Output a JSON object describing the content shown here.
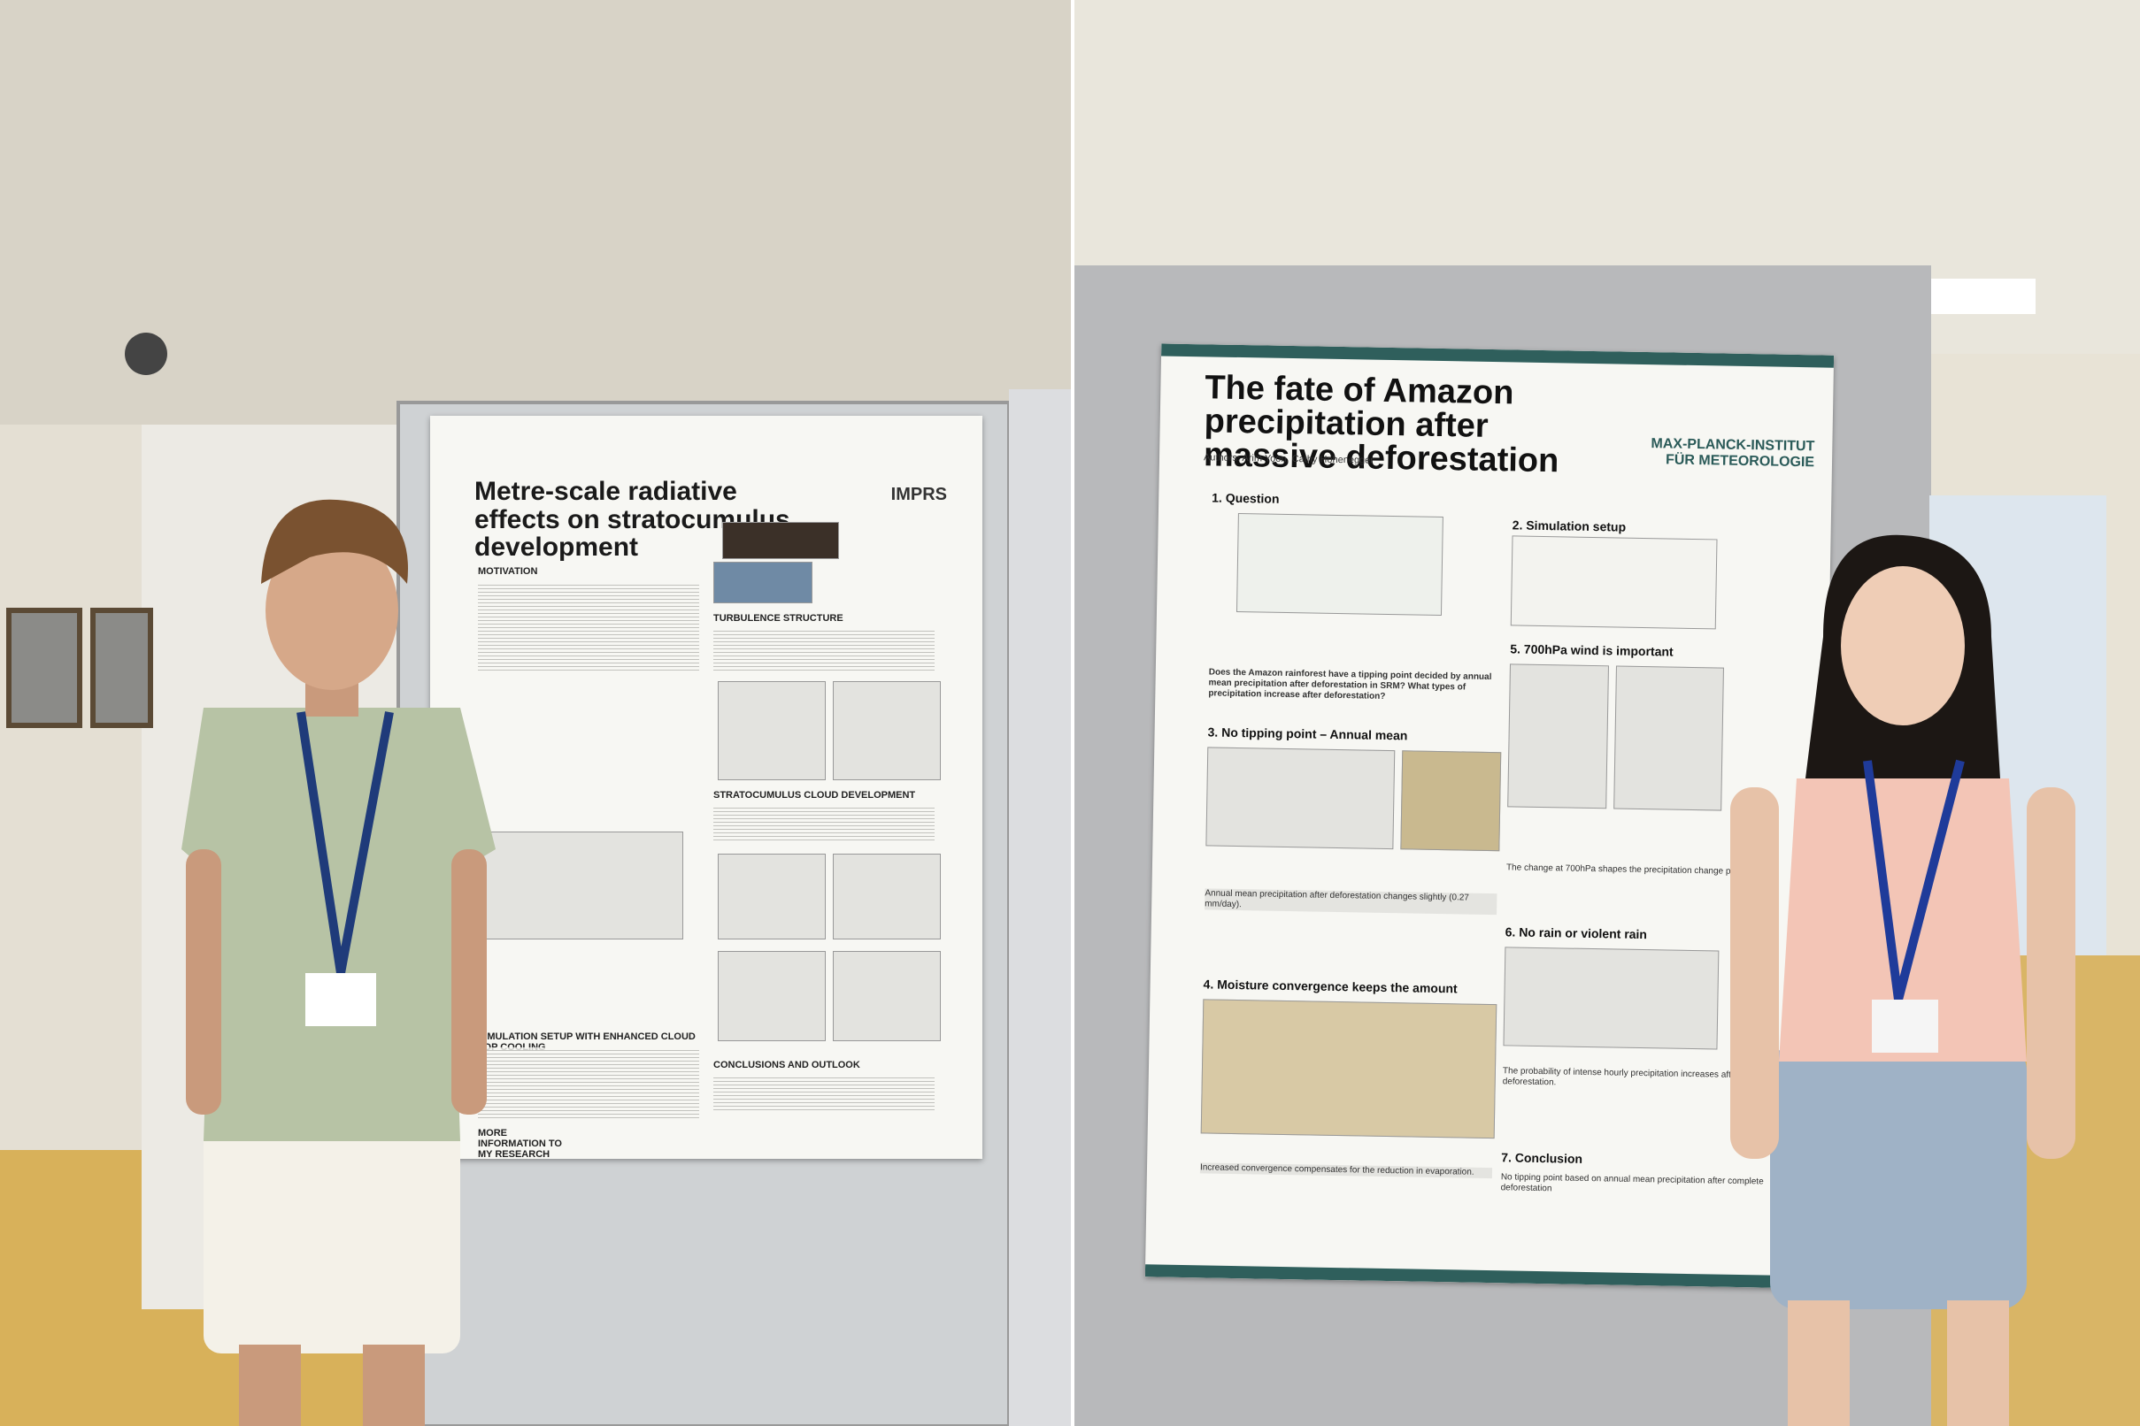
{
  "left_poster": {
    "title": "Metre-scale radiative effects on stratocumulus development",
    "institute": "IMPRS",
    "sections": [
      "MOTIVATION",
      "TURBULENCE STRUCTURE",
      "STRATOCUMULUS CLOUD DEVELOPMENT",
      "SIMULATION SETUP WITH ENHANCED CLOUD TOP COOLING",
      "CONCLUSIONS AND OUTLOOK"
    ],
    "footer": "MORE INFORMATION TO MY RESEARCH"
  },
  "right_poster": {
    "title": "The fate of Amazon precipitation after massive deforestation",
    "authors": "Authors: Arim Yoon, Cathy Hohenegger",
    "institute": "MAX-PLANCK-INSTITUT FÜR METEOROLOGIE",
    "sections": [
      {
        "heading": "1. Question",
        "text": "Does the Amazon rainforest have a tipping point decided by annual mean precipitation after deforestation in SRM? What types of precipitation increase after deforestation?"
      },
      {
        "heading": "3. No tipping point – Annual mean",
        "text": "Annual mean precipitation after deforestation changes slightly (0.27 mm/day)."
      },
      {
        "heading": "4. Moisture convergence keeps the amount",
        "text": "Increased convergence compensates for the reduction in evaporation."
      },
      {
        "heading": "2. Simulation setup",
        "text": ""
      },
      {
        "heading": "5. 700hPa wind is important",
        "text": "The change at 700hPa shapes the precipitation change pattern."
      },
      {
        "heading": "6. No rain or violent rain",
        "text": "The probability of intense hourly precipitation increases after deforestation."
      },
      {
        "heading": "7. Conclusion",
        "text": "No tipping point based on annual mean precipitation after complete deforestation"
      }
    ]
  }
}
